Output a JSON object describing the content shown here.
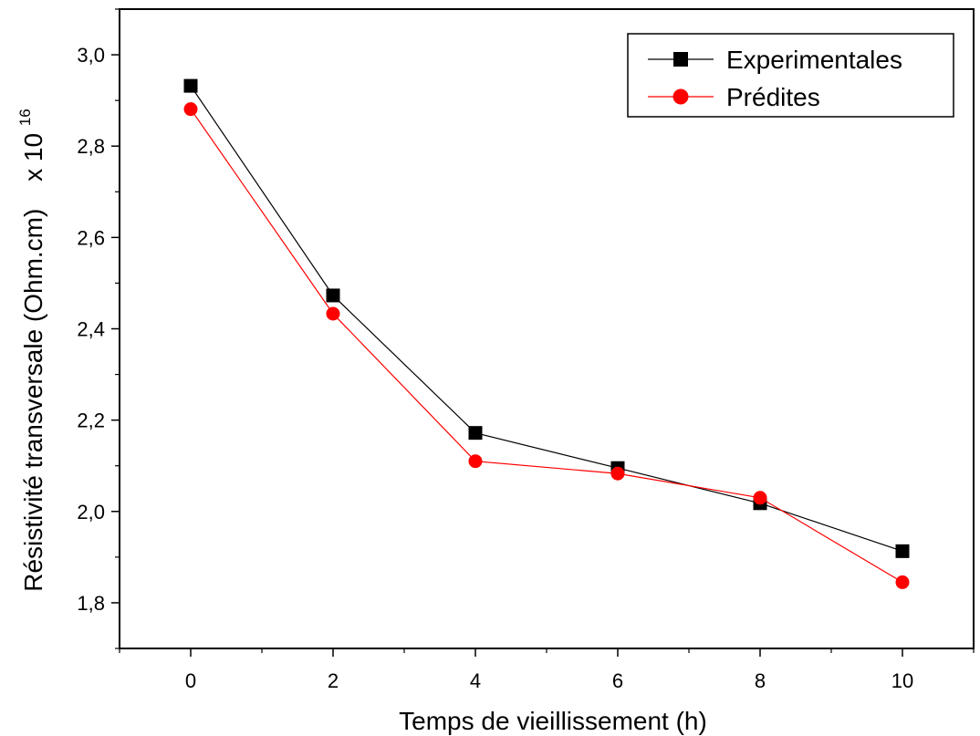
{
  "chart_data": {
    "type": "line",
    "xlabel": "Temps de vieillissement (h)",
    "ylabel": "Résistivité transversale (Ohm.cm)",
    "ylabel_multiplier": "x 10",
    "ylabel_exponent": "16",
    "xlim": [
      -1,
      11
    ],
    "ylim": [
      1.7,
      3.1
    ],
    "xticks": [
      0,
      2,
      4,
      6,
      8,
      10
    ],
    "xtick_labels": [
      "0",
      "2",
      "4",
      "6",
      "8",
      "10"
    ],
    "yticks": [
      1.8,
      2.0,
      2.2,
      2.4,
      2.6,
      2.8,
      3.0
    ],
    "ytick_labels": [
      "1,8",
      "2,0",
      "2,2",
      "2,4",
      "2,6",
      "2,8",
      "3,0"
    ],
    "grid": false,
    "legend_position": "top-right",
    "series": [
      {
        "name": "Experimentales",
        "color": "#000000",
        "marker": "square",
        "x": [
          0,
          2,
          4,
          6,
          8,
          10
        ],
        "values": [
          2.932,
          2.473,
          2.172,
          2.095,
          2.018,
          1.913
        ]
      },
      {
        "name": "Prédites",
        "color": "#ff0000",
        "marker": "circle",
        "x": [
          0,
          2,
          4,
          6,
          8,
          10
        ],
        "values": [
          2.881,
          2.433,
          2.11,
          2.083,
          2.03,
          1.845
        ]
      }
    ]
  }
}
